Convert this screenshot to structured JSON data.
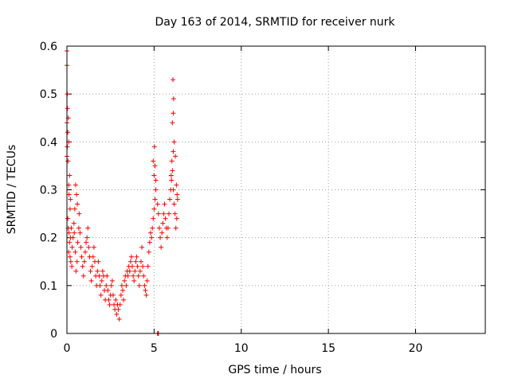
{
  "chart_data": {
    "type": "scatter",
    "title": "Day 163 of 2014, SRMTID for receiver nurk",
    "xlabel": "GPS time / hours",
    "ylabel": "SRMTID / TECUs",
    "xlim": [
      0,
      24
    ],
    "ylim": [
      0,
      0.6
    ],
    "x_ticks": [
      0,
      5,
      10,
      15,
      20
    ],
    "x_tick_labels": [
      "0",
      "5",
      "10",
      "15",
      "20"
    ],
    "y_ticks": [
      0,
      0.1,
      0.2,
      0.3,
      0.4,
      0.5,
      0.6
    ],
    "y_tick_labels": [
      "0",
      "0.1",
      "0.2",
      "0.3",
      "0.4",
      "0.5",
      "0.6"
    ],
    "grid": true,
    "marker": "plus",
    "color": "#ff0000",
    "series": [
      {
        "name": "SRMTID",
        "points": [
          [
            0.0,
            0.59
          ],
          [
            0.0,
            0.56
          ],
          [
            0.02,
            0.5
          ],
          [
            0.03,
            0.47
          ],
          [
            0.0,
            0.44
          ],
          [
            0.05,
            0.42
          ],
          [
            0.02,
            0.39
          ],
          [
            0.0,
            0.37
          ],
          [
            0.08,
            0.45
          ],
          [
            0.1,
            0.4
          ],
          [
            0.06,
            0.36
          ],
          [
            0.1,
            0.31
          ],
          [
            0.15,
            0.33
          ],
          [
            0.12,
            0.29
          ],
          [
            0.2,
            0.28
          ],
          [
            0.18,
            0.26
          ],
          [
            0.05,
            0.24
          ],
          [
            0.08,
            0.22
          ],
          [
            0.12,
            0.21
          ],
          [
            0.15,
            0.19
          ],
          [
            0.2,
            0.2
          ],
          [
            0.25,
            0.22
          ],
          [
            0.1,
            0.17
          ],
          [
            0.18,
            0.16
          ],
          [
            0.22,
            0.15
          ],
          [
            0.28,
            0.14
          ],
          [
            0.3,
            0.18
          ],
          [
            0.35,
            0.2
          ],
          [
            0.4,
            0.23
          ],
          [
            0.45,
            0.26
          ],
          [
            0.5,
            0.31
          ],
          [
            0.55,
            0.29
          ],
          [
            0.6,
            0.27
          ],
          [
            0.42,
            0.21
          ],
          [
            0.48,
            0.17
          ],
          [
            0.52,
            0.13
          ],
          [
            0.58,
            0.15
          ],
          [
            0.62,
            0.19
          ],
          [
            0.68,
            0.22
          ],
          [
            0.7,
            0.25
          ],
          [
            0.75,
            0.21
          ],
          [
            0.8,
            0.18
          ],
          [
            0.85,
            0.16
          ],
          [
            0.9,
            0.14
          ],
          [
            0.95,
            0.12
          ],
          [
            1.0,
            0.15
          ],
          [
            1.05,
            0.17
          ],
          [
            1.1,
            0.19
          ],
          [
            1.15,
            0.2
          ],
          [
            1.2,
            0.22
          ],
          [
            1.25,
            0.18
          ],
          [
            1.3,
            0.16
          ],
          [
            1.35,
            0.13
          ],
          [
            1.4,
            0.11
          ],
          [
            1.45,
            0.14
          ],
          [
            1.5,
            0.16
          ],
          [
            1.55,
            0.18
          ],
          [
            1.6,
            0.15
          ],
          [
            1.65,
            0.12
          ],
          [
            1.7,
            0.1
          ],
          [
            1.75,
            0.13
          ],
          [
            1.8,
            0.15
          ],
          [
            1.85,
            0.12
          ],
          [
            1.9,
            0.1
          ],
          [
            1.95,
            0.08
          ],
          [
            2.0,
            0.11
          ],
          [
            2.05,
            0.13
          ],
          [
            2.1,
            0.12
          ],
          [
            2.15,
            0.09
          ],
          [
            2.2,
            0.07
          ],
          [
            2.25,
            0.1
          ],
          [
            2.3,
            0.12
          ],
          [
            2.35,
            0.09
          ],
          [
            2.4,
            0.07
          ],
          [
            2.45,
            0.06
          ],
          [
            2.5,
            0.08
          ],
          [
            2.55,
            0.1
          ],
          [
            2.6,
            0.11
          ],
          [
            2.65,
            0.08
          ],
          [
            2.7,
            0.06
          ],
          [
            2.75,
            0.05
          ],
          [
            2.8,
            0.07
          ],
          [
            2.85,
            0.04
          ],
          [
            2.9,
            0.06
          ],
          [
            2.95,
            0.05
          ],
          [
            3.0,
            0.03
          ],
          [
            3.05,
            0.06
          ],
          [
            3.1,
            0.08
          ],
          [
            3.15,
            0.1
          ],
          [
            3.2,
            0.09
          ],
          [
            3.25,
            0.07
          ],
          [
            3.3,
            0.11
          ],
          [
            3.35,
            0.12
          ],
          [
            3.4,
            0.1
          ],
          [
            3.45,
            0.13
          ],
          [
            3.5,
            0.12
          ],
          [
            3.55,
            0.14
          ],
          [
            3.6,
            0.13
          ],
          [
            3.65,
            0.15
          ],
          [
            3.7,
            0.16
          ],
          [
            3.75,
            0.14
          ],
          [
            3.8,
            0.12
          ],
          [
            3.85,
            0.11
          ],
          [
            3.9,
            0.13
          ],
          [
            3.95,
            0.15
          ],
          [
            4.0,
            0.16
          ],
          [
            4.05,
            0.14
          ],
          [
            4.1,
            0.12
          ],
          [
            4.15,
            0.1
          ],
          [
            4.2,
            0.13
          ],
          [
            4.25,
            0.15
          ],
          [
            4.3,
            0.18
          ],
          [
            4.35,
            0.14
          ],
          [
            4.4,
            0.12
          ],
          [
            4.45,
            0.1
          ],
          [
            4.5,
            0.09
          ],
          [
            4.55,
            0.08
          ],
          [
            4.6,
            0.11
          ],
          [
            4.65,
            0.14
          ],
          [
            4.7,
            0.17
          ],
          [
            4.75,
            0.19
          ],
          [
            4.8,
            0.21
          ],
          [
            4.85,
            0.2
          ],
          [
            4.9,
            0.22
          ],
          [
            4.95,
            0.24
          ],
          [
            5.0,
            0.26
          ],
          [
            5.05,
            0.28
          ],
          [
            5.1,
            0.3
          ],
          [
            5.0,
            0.33
          ],
          [
            4.95,
            0.36
          ],
          [
            5.02,
            0.39
          ],
          [
            5.05,
            0.35
          ],
          [
            5.1,
            0.32
          ],
          [
            5.2,
            0.27
          ],
          [
            5.25,
            0.25
          ],
          [
            5.3,
            0.22
          ],
          [
            5.35,
            0.2
          ],
          [
            5.4,
            0.18
          ],
          [
            5.45,
            0.21
          ],
          [
            5.5,
            0.23
          ],
          [
            5.55,
            0.25
          ],
          [
            5.6,
            0.27
          ],
          [
            5.65,
            0.24
          ],
          [
            5.7,
            0.22
          ],
          [
            5.75,
            0.2
          ],
          [
            5.8,
            0.22
          ],
          [
            5.85,
            0.25
          ],
          [
            5.9,
            0.28
          ],
          [
            5.95,
            0.3
          ],
          [
            6.0,
            0.32
          ],
          [
            6.05,
            0.34
          ],
          [
            6.1,
            0.3
          ],
          [
            6.15,
            0.27
          ],
          [
            6.2,
            0.25
          ],
          [
            6.25,
            0.22
          ],
          [
            6.3,
            0.24
          ],
          [
            6.35,
            0.28
          ],
          [
            6.1,
            0.38
          ],
          [
            6.15,
            0.4
          ],
          [
            6.05,
            0.44
          ],
          [
            6.1,
            0.46
          ],
          [
            6.12,
            0.49
          ],
          [
            6.08,
            0.53
          ],
          [
            6.02,
            0.36
          ],
          [
            5.98,
            0.33
          ],
          [
            6.22,
            0.37
          ],
          [
            6.28,
            0.31
          ],
          [
            6.32,
            0.29
          ],
          [
            5.2,
            0.0
          ],
          [
            5.25,
            0.0
          ],
          [
            5.22,
            0.0
          ]
        ]
      }
    ]
  }
}
